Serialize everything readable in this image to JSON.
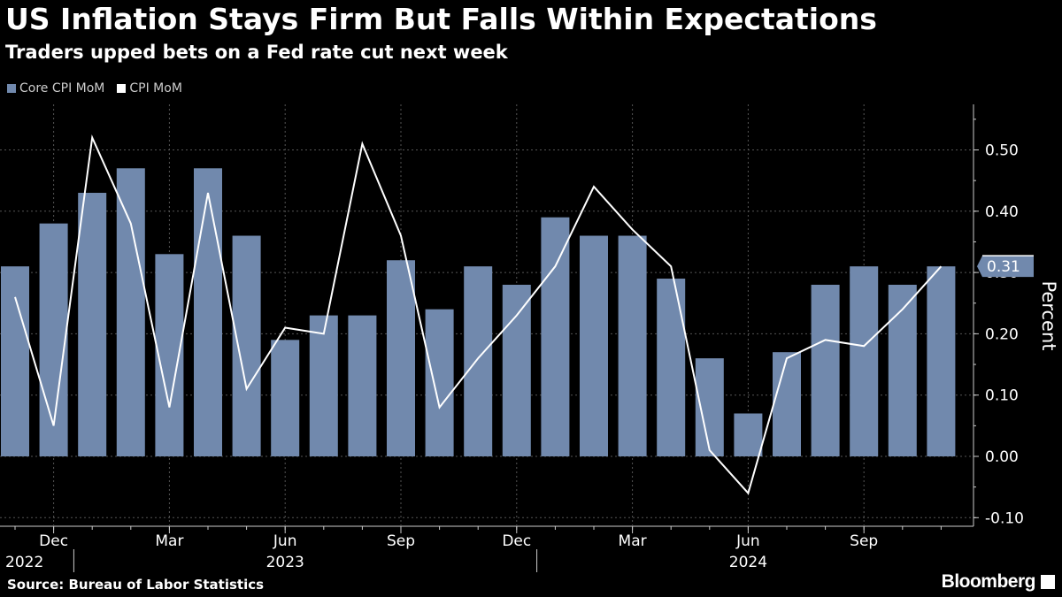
{
  "header": {
    "title": "US Inflation Stays Firm But Falls Within Expectations",
    "subtitle": "Traders upped bets on a Fed rate cut next week"
  },
  "legend": {
    "core_label": "Core CPI MoM",
    "cpi_label": "CPI MoM"
  },
  "footer": {
    "source": "Source: Bureau of Labor Statistics",
    "brand": "Bloomberg"
  },
  "colors": {
    "bar": "#7189ad",
    "line": "#ffffff",
    "grid": "#555555",
    "axis": "#cccccc"
  },
  "chart_data": {
    "type": "bar",
    "title": "US Inflation Stays Firm But Falls Within Expectations",
    "subtitle": "Traders upped bets on a Fed rate cut next week",
    "ylabel": "Percent",
    "ylim": [
      -0.1,
      0.55
    ],
    "yticks": [
      0.5,
      0.4,
      0.3,
      0.2,
      0.1,
      0.0,
      -0.1
    ],
    "ytick_labels": [
      "0.50",
      "0.40",
      "0.30",
      "0.20",
      "0.10",
      "0.00",
      "-0.10"
    ],
    "categories": [
      "Nov 2022",
      "Dec 2022",
      "Jan 2023",
      "Feb 2023",
      "Mar 2023",
      "Apr 2023",
      "May 2023",
      "Jun 2023",
      "Jul 2023",
      "Aug 2023",
      "Sep 2023",
      "Oct 2023",
      "Nov 2023",
      "Dec 2023",
      "Jan 2024",
      "Feb 2024",
      "Mar 2024",
      "Apr 2024",
      "May 2024",
      "Jun 2024",
      "Jul 2024",
      "Aug 2024",
      "Sep 2024",
      "Oct 2024",
      "Nov 2024"
    ],
    "x_tick_labels": [
      {
        "label": "Dec",
        "index": 1
      },
      {
        "label": "Mar",
        "index": 4
      },
      {
        "label": "Jun",
        "index": 7
      },
      {
        "label": "Sep",
        "index": 10
      },
      {
        "label": "Dec",
        "index": 13
      },
      {
        "label": "Mar",
        "index": 16
      },
      {
        "label": "Jun",
        "index": 19
      },
      {
        "label": "Sep",
        "index": 22
      }
    ],
    "year_labels": [
      {
        "label": "2022",
        "index": 0
      },
      {
        "label": "2023",
        "index": 7
      },
      {
        "label": "2024",
        "index": 19
      }
    ],
    "year_separators": [
      1.5,
      13.5
    ],
    "series": [
      {
        "name": "Core CPI MoM",
        "kind": "bar",
        "values": [
          0.31,
          0.38,
          0.43,
          0.47,
          0.33,
          0.47,
          0.36,
          0.19,
          0.23,
          0.23,
          0.32,
          0.24,
          0.31,
          0.28,
          0.39,
          0.36,
          0.36,
          0.29,
          0.16,
          0.07,
          0.17,
          0.28,
          0.31,
          0.28,
          0.31
        ]
      },
      {
        "name": "CPI MoM",
        "kind": "line",
        "values": [
          0.26,
          0.05,
          0.52,
          0.38,
          0.08,
          0.43,
          0.11,
          0.21,
          0.2,
          0.51,
          0.36,
          0.08,
          0.16,
          0.23,
          0.31,
          0.44,
          0.37,
          0.31,
          0.01,
          -0.06,
          0.16,
          0.19,
          0.18,
          0.24,
          0.31
        ]
      }
    ],
    "latest_value_label": "0.31"
  }
}
